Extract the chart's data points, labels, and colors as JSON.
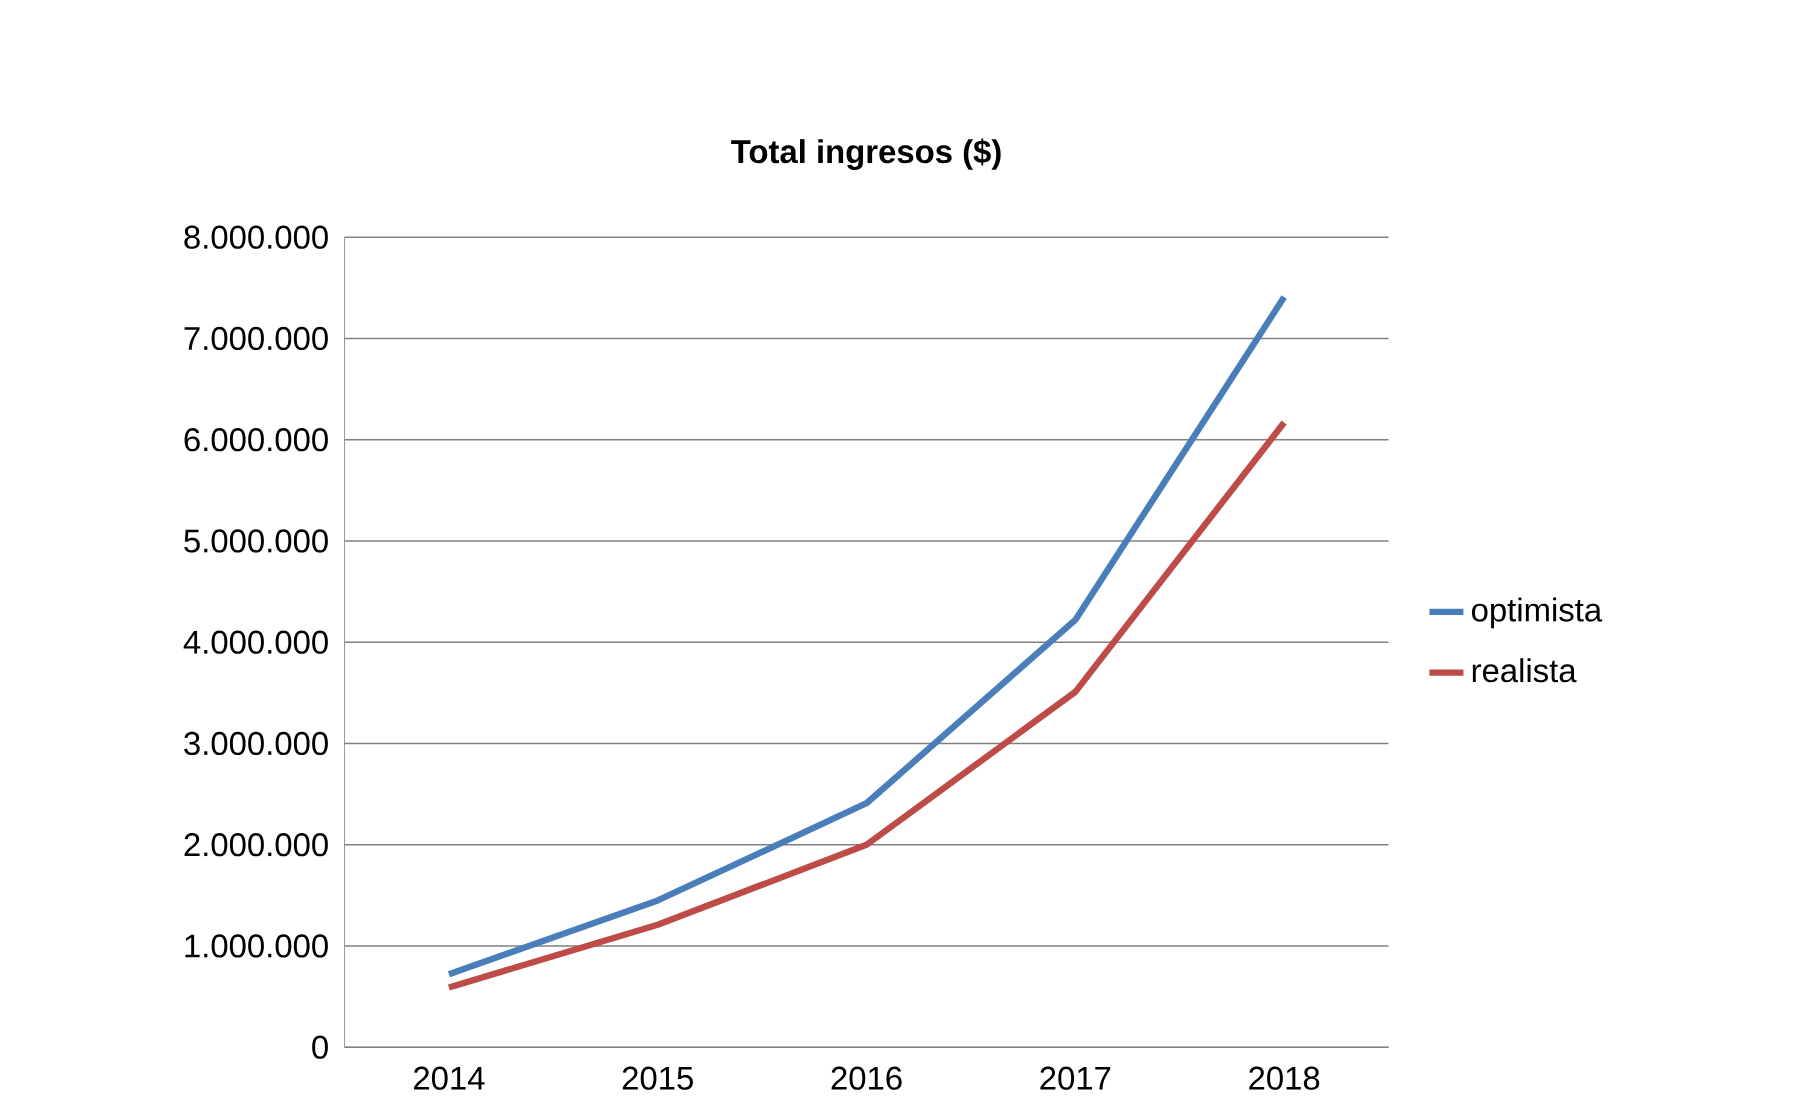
{
  "chart_data": {
    "type": "line",
    "title": "Total ingresos ($)",
    "categories": [
      "2014",
      "2015",
      "2016",
      "2017",
      "2018"
    ],
    "series": [
      {
        "name": "optimista",
        "color": "#4a7ebb",
        "values": [
          720000,
          1450000,
          2410000,
          4220000,
          7410000
        ]
      },
      {
        "name": "realista",
        "color": "#be4b48",
        "values": [
          590000,
          1210000,
          2000000,
          3510000,
          6170000
        ]
      }
    ],
    "ylim": [
      0,
      8000000
    ],
    "yticks": [
      0,
      {
        "value": 1000000,
        "label": "1.000.000"
      },
      {
        "value": 2000000,
        "label": "2.000.000"
      },
      {
        "value": 3000000,
        "label": "3.000.000"
      },
      {
        "value": 4000000,
        "label": "4.000.000"
      },
      {
        "value": 5000000,
        "label": "5.000.000"
      },
      {
        "value": 6000000,
        "label": "6.000.000"
      },
      {
        "value": 7000000,
        "label": "7.000.000"
      },
      {
        "value": 8000000,
        "label": "8.000.000"
      }
    ],
    "grid": "y",
    "legend": "right",
    "marker": "none",
    "line_style": "solid"
  }
}
